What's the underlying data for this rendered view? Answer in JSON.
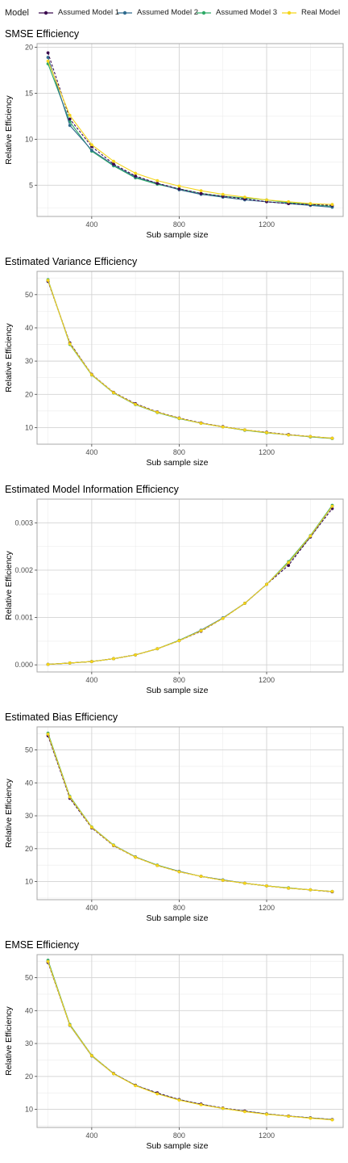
{
  "legend": {
    "title": "Model",
    "entries": [
      {
        "name": "Assumed Model 1",
        "color": "#3b0a4f"
      },
      {
        "name": "Assumed Model 2",
        "color": "#2f6b8e"
      },
      {
        "name": "Assumed Model 3",
        "color": "#2eaa67"
      },
      {
        "name": "Real Model",
        "color": "#f5d51a"
      }
    ],
    "placement": "top"
  },
  "chart_data": [
    {
      "type": "line",
      "title": "SMSE Efficiency",
      "xlabel": "Sub sample size",
      "ylabel": "Relative Efficiency",
      "xlim": [
        150,
        1550
      ],
      "ylim": [
        1.6,
        20.4
      ],
      "xticks": [
        400,
        800,
        1200
      ],
      "yticks": [
        5,
        10,
        15,
        20
      ],
      "grid": true,
      "x": [
        200,
        300,
        400,
        500,
        600,
        700,
        800,
        900,
        1000,
        1100,
        1200,
        1300,
        1400,
        1500
      ],
      "series": [
        {
          "name": "Assumed Model 1",
          "values": [
            19.4,
            12.2,
            9.2,
            7.3,
            6.0,
            5.2,
            4.6,
            4.1,
            3.8,
            3.5,
            3.2,
            3.0,
            2.9,
            2.8
          ]
        },
        {
          "name": "Assumed Model 2",
          "values": [
            18.9,
            11.5,
            8.8,
            7.2,
            5.9,
            5.2,
            4.5,
            4.0,
            3.7,
            3.4,
            3.2,
            3.0,
            2.8,
            2.6
          ]
        },
        {
          "name": "Assumed Model 3",
          "values": [
            18.2,
            11.9,
            8.7,
            7.1,
            5.8,
            5.1,
            4.6,
            4.1,
            3.8,
            3.6,
            3.4,
            3.1,
            2.9,
            2.7
          ]
        },
        {
          "name": "Real Model",
          "values": [
            18.5,
            12.6,
            9.4,
            7.6,
            6.3,
            5.5,
            4.9,
            4.4,
            4.0,
            3.7,
            3.4,
            3.2,
            3.0,
            2.9
          ]
        }
      ]
    },
    {
      "type": "line",
      "title": "Estimated Variance Efficiency",
      "xlabel": "Sub sample size",
      "ylabel": "Relative Efficiency",
      "xlim": [
        150,
        1550
      ],
      "ylim": [
        5,
        57
      ],
      "xticks": [
        400,
        800,
        1200
      ],
      "yticks": [
        10,
        20,
        30,
        40,
        50
      ],
      "grid": true,
      "x": [
        200,
        300,
        400,
        500,
        600,
        700,
        800,
        900,
        1000,
        1100,
        1200,
        1300,
        1400,
        1500
      ],
      "series": [
        {
          "name": "Assumed Model 1",
          "values": [
            54.0,
            35.5,
            26.0,
            20.6,
            17.2,
            14.7,
            12.9,
            11.4,
            10.3,
            9.3,
            8.6,
            7.9,
            7.3,
            6.8
          ]
        },
        {
          "name": "Assumed Model 2",
          "values": [
            54.2,
            35.3,
            25.9,
            20.5,
            17.0,
            14.6,
            12.8,
            11.3,
            10.2,
            9.3,
            8.5,
            7.8,
            7.3,
            6.8
          ]
        },
        {
          "name": "Assumed Model 3",
          "values": [
            54.5,
            35.0,
            25.8,
            20.4,
            16.9,
            14.5,
            12.7,
            11.3,
            10.2,
            9.2,
            8.4,
            7.8,
            7.2,
            6.7
          ]
        },
        {
          "name": "Real Model",
          "values": [
            54.3,
            35.2,
            25.9,
            20.5,
            17.0,
            14.6,
            12.8,
            11.3,
            10.2,
            9.3,
            8.5,
            7.8,
            7.3,
            6.8
          ]
        }
      ]
    },
    {
      "type": "line",
      "title": "Estimated Model Information Efficiency",
      "xlabel": "Sub sample size",
      "ylabel": "Relative Efficiency",
      "xlim": [
        150,
        1550
      ],
      "ylim": [
        -0.00015,
        0.0035
      ],
      "xticks": [
        400,
        800,
        1200
      ],
      "yticks": [
        0,
        0.001,
        0.002,
        0.003
      ],
      "ytick_labels": [
        "0.000",
        "0.001",
        "0.002",
        "0.003"
      ],
      "grid": true,
      "x": [
        200,
        300,
        400,
        500,
        600,
        700,
        800,
        900,
        1000,
        1100,
        1200,
        1300,
        1400,
        1500
      ],
      "series": [
        {
          "name": "Assumed Model 1",
          "values": [
            1e-05,
            4e-05,
            7e-05,
            0.00013,
            0.00021,
            0.00034,
            0.00051,
            0.00071,
            0.00098,
            0.0013,
            0.0017,
            0.0021,
            0.0027,
            0.0033
          ]
        },
        {
          "name": "Assumed Model 2",
          "values": [
            1e-05,
            4e-05,
            7e-05,
            0.00013,
            0.00021,
            0.00034,
            0.00051,
            0.00073,
            0.00099,
            0.0013,
            0.0017,
            0.00215,
            0.0027,
            0.00335
          ]
        },
        {
          "name": "Assumed Model 3",
          "values": [
            1e-05,
            4e-05,
            7e-05,
            0.00013,
            0.00021,
            0.00034,
            0.00052,
            0.00073,
            0.00099,
            0.0013,
            0.0017,
            0.00218,
            0.00273,
            0.00337
          ]
        },
        {
          "name": "Real Model",
          "values": [
            1e-05,
            4e-05,
            7e-05,
            0.00013,
            0.00021,
            0.00034,
            0.00051,
            0.00072,
            0.00098,
            0.0013,
            0.0017,
            0.00216,
            0.00272,
            0.00335
          ]
        }
      ]
    },
    {
      "type": "line",
      "title": "Estimated Bias Efficiency",
      "xlabel": "Sub sample size",
      "ylabel": "Relative Efficiency",
      "xlim": [
        150,
        1550
      ],
      "ylim": [
        4.5,
        57
      ],
      "xticks": [
        400,
        800,
        1200
      ],
      "yticks": [
        10,
        20,
        30,
        40,
        50
      ],
      "grid": true,
      "x": [
        200,
        300,
        400,
        500,
        600,
        700,
        800,
        900,
        1000,
        1100,
        1200,
        1300,
        1400,
        1500
      ],
      "series": [
        {
          "name": "Assumed Model 1",
          "values": [
            54.3,
            35.3,
            26.3,
            20.9,
            17.4,
            14.9,
            13.0,
            11.6,
            10.4,
            9.5,
            8.7,
            8.0,
            7.5,
            6.9
          ]
        },
        {
          "name": "Assumed Model 2",
          "values": [
            54.6,
            35.6,
            26.5,
            21.0,
            17.5,
            14.9,
            13.1,
            11.6,
            10.5,
            9.5,
            8.7,
            8.0,
            7.5,
            7.0
          ]
        },
        {
          "name": "Assumed Model 3",
          "values": [
            55.1,
            35.9,
            26.6,
            21.1,
            17.5,
            15.0,
            13.1,
            11.6,
            10.5,
            9.5,
            8.7,
            8.1,
            7.5,
            7.0
          ]
        },
        {
          "name": "Real Model",
          "values": [
            54.8,
            35.7,
            26.5,
            21.0,
            17.4,
            14.9,
            13.0,
            11.6,
            10.4,
            9.5,
            8.7,
            8.0,
            7.5,
            7.0
          ]
        }
      ]
    },
    {
      "type": "line",
      "title": "EMSE Efficiency",
      "xlabel": "Sub sample size",
      "ylabel": "Relative Efficiency",
      "xlim": [
        150,
        1550
      ],
      "ylim": [
        4.5,
        57
      ],
      "xticks": [
        400,
        800,
        1200
      ],
      "yticks": [
        10,
        20,
        30,
        40,
        50
      ],
      "grid": true,
      "x": [
        200,
        300,
        400,
        500,
        600,
        700,
        800,
        900,
        1000,
        1100,
        1200,
        1300,
        1400,
        1500
      ],
      "series": [
        {
          "name": "Assumed Model 1",
          "values": [
            54.6,
            35.6,
            26.3,
            20.9,
            17.3,
            15.0,
            13.0,
            11.6,
            10.4,
            9.5,
            8.6,
            8.0,
            7.4,
            6.9
          ]
        },
        {
          "name": "Assumed Model 2",
          "values": [
            54.9,
            35.5,
            26.2,
            20.8,
            17.3,
            14.8,
            12.9,
            11.5,
            10.3,
            9.4,
            8.6,
            7.9,
            7.4,
            6.9
          ]
        },
        {
          "name": "Assumed Model 3",
          "values": [
            55.3,
            35.8,
            26.4,
            20.9,
            17.3,
            14.8,
            12.9,
            11.5,
            10.3,
            9.4,
            8.6,
            7.9,
            7.4,
            6.9
          ]
        },
        {
          "name": "Real Model",
          "values": [
            54.9,
            35.6,
            26.3,
            20.8,
            17.2,
            14.7,
            12.8,
            11.4,
            10.3,
            9.3,
            8.5,
            7.9,
            7.3,
            6.8
          ]
        }
      ]
    }
  ]
}
